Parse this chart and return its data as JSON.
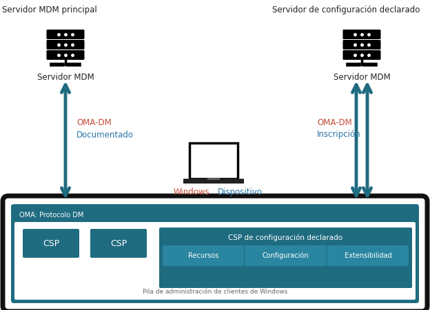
{
  "bg_color": "#ffffff",
  "title_left": "Servidor MDM principal",
  "title_right": "Servidor de configuración declarado",
  "server_label": "Servidor MDM",
  "label_left_line1": "OMA-DM",
  "label_left_line2": "Documentado",
  "label_right_line1": "OMA-DM",
  "label_right_line2": "Inscripción",
  "device_label_left": "Windows",
  "device_label_right": "Dispositivo",
  "oma_protocol_label": "OMA: Protocolo DM",
  "csp1_label": "CSP",
  "csp2_label": "CSP",
  "csp_declared_label": "CSP de configuración declarado",
  "recursos_label": "Recursos",
  "config_label": "Configuración",
  "extensibilidad_label": "Extensibilidad",
  "pila_label": "Pila de administración de clientes de Windows",
  "teal": "#1f6b80",
  "teal_light": "#2a85a0",
  "arrow_color": "#1f6b80",
  "text_dark": "#222222",
  "text_label1_color": "#c0392b",
  "text_label2_color": "#2980b9",
  "oma_label1_color": "#e05050",
  "oma_label2_color": "#1a6a9a",
  "white": "#ffffff",
  "gray_text": "#555555"
}
